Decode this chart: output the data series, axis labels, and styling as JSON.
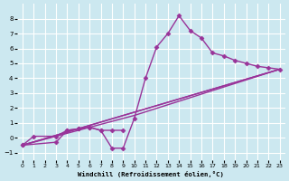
{
  "title": "",
  "xlabel": "Windchill (Refroidissement éolien,°C)",
  "ylabel": "",
  "bg_color": "#cce8f0",
  "line_color": "#993399",
  "marker": "D",
  "marker_size": 2.5,
  "line_width": 1.0,
  "xlim": [
    -0.5,
    23.5
  ],
  "ylim": [
    -1.5,
    9.0
  ],
  "xticks": [
    0,
    1,
    2,
    3,
    4,
    5,
    6,
    7,
    8,
    9,
    10,
    11,
    12,
    13,
    14,
    15,
    16,
    17,
    18,
    19,
    20,
    21,
    22,
    23
  ],
  "yticks": [
    -1,
    0,
    1,
    2,
    3,
    4,
    5,
    6,
    7,
    8
  ],
  "grid_color": "#ffffff",
  "series": [
    {
      "x": [
        0,
        1,
        3,
        4,
        5,
        6,
        7,
        8,
        9,
        10,
        11,
        12,
        13,
        14,
        15,
        16,
        17,
        18,
        19,
        20,
        21,
        22,
        23
      ],
      "y": [
        -0.5,
        0.1,
        0.1,
        0.5,
        0.6,
        0.7,
        0.5,
        -0.7,
        -0.7,
        1.3,
        4.0,
        6.1,
        7.0,
        8.2,
        7.2,
        6.7,
        5.7,
        5.5,
        5.2,
        5.0,
        4.8,
        4.7,
        4.6
      ]
    },
    {
      "x": [
        0,
        3,
        4,
        5,
        6,
        7,
        8,
        9
      ],
      "y": [
        -0.5,
        -0.3,
        0.5,
        0.6,
        0.7,
        0.5,
        0.5,
        0.5
      ]
    },
    {
      "x": [
        0,
        23
      ],
      "y": [
        -0.5,
        4.6
      ]
    },
    {
      "x": [
        0,
        23
      ],
      "y": [
        -0.5,
        4.6
      ]
    },
    {
      "x": [
        0,
        10,
        23
      ],
      "y": [
        -0.5,
        1.5,
        4.6
      ]
    }
  ]
}
